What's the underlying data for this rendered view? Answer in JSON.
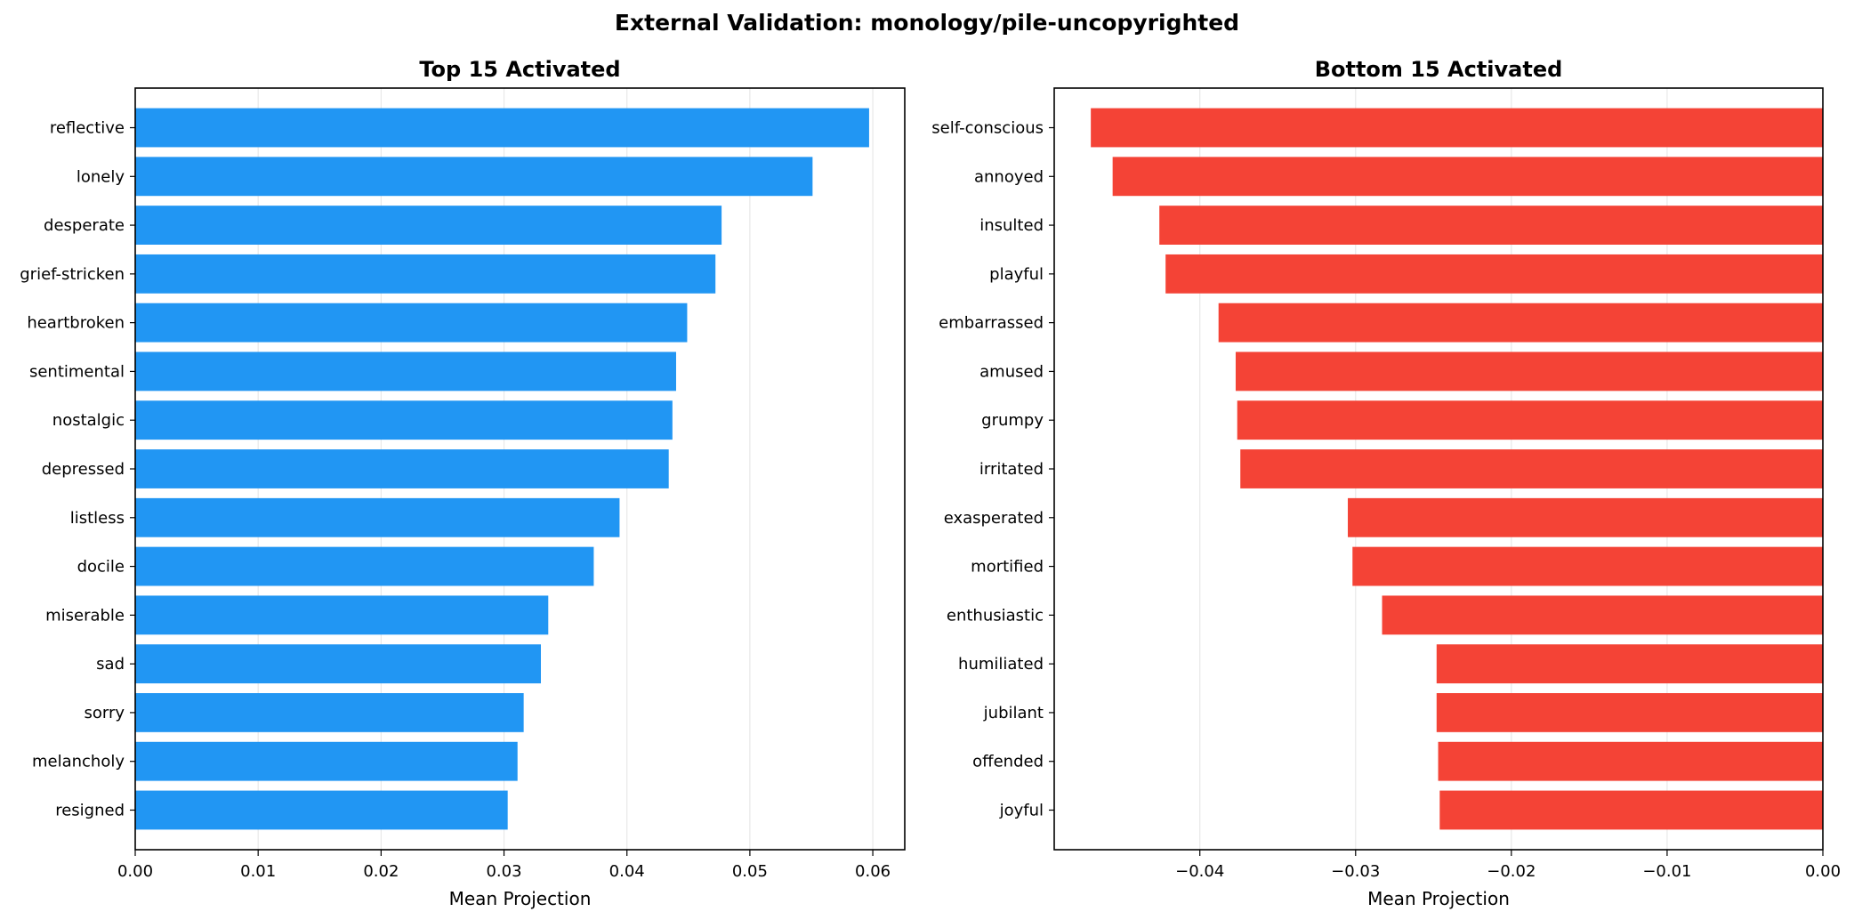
{
  "figure": {
    "title": "External Validation: monology/pile-uncopyrighted"
  },
  "chart_data": [
    {
      "type": "bar",
      "orientation": "horizontal",
      "title": "Top 15 Activated",
      "xlabel": "Mean Projection",
      "ylabel": "",
      "xlim": [
        0,
        0.0626
      ],
      "xticks": [
        0.0,
        0.01,
        0.02,
        0.03,
        0.04,
        0.05,
        0.06
      ],
      "xtick_labels": [
        "0.00",
        "0.01",
        "0.02",
        "0.03",
        "0.04",
        "0.05",
        "0.06"
      ],
      "grid": "vertical",
      "color": "#2196F3",
      "categories": [
        "reflective",
        "lonely",
        "desperate",
        "grief-stricken",
        "heartbroken",
        "sentimental",
        "nostalgic",
        "depressed",
        "listless",
        "docile",
        "miserable",
        "sad",
        "sorry",
        "melancholy",
        "resigned"
      ],
      "values": [
        0.0597,
        0.0551,
        0.0477,
        0.0472,
        0.0449,
        0.044,
        0.0437,
        0.0434,
        0.0394,
        0.0373,
        0.0336,
        0.033,
        0.0316,
        0.0311,
        0.0303
      ]
    },
    {
      "type": "bar",
      "orientation": "horizontal",
      "title": "Bottom 15 Activated",
      "xlabel": "Mean Projection",
      "ylabel": "",
      "xlim": [
        -0.04935,
        0
      ],
      "xticks": [
        -0.04,
        -0.03,
        -0.02,
        -0.01,
        0.0
      ],
      "xtick_labels": [
        "−0.04",
        "−0.03",
        "−0.02",
        "−0.01",
        "0.00"
      ],
      "grid": "vertical",
      "color": "#F44336",
      "categories": [
        "self-conscious",
        "annoyed",
        "insulted",
        "playful",
        "embarrassed",
        "amused",
        "grumpy",
        "irritated",
        "exasperated",
        "mortified",
        "enthusiastic",
        "humiliated",
        "jubilant",
        "offended",
        "joyful"
      ],
      "values": [
        -0.047,
        -0.0456,
        -0.0426,
        -0.0422,
        -0.0388,
        -0.0377,
        -0.0376,
        -0.0374,
        -0.0305,
        -0.0302,
        -0.0283,
        -0.0248,
        -0.0248,
        -0.0247,
        -0.0246
      ]
    }
  ]
}
